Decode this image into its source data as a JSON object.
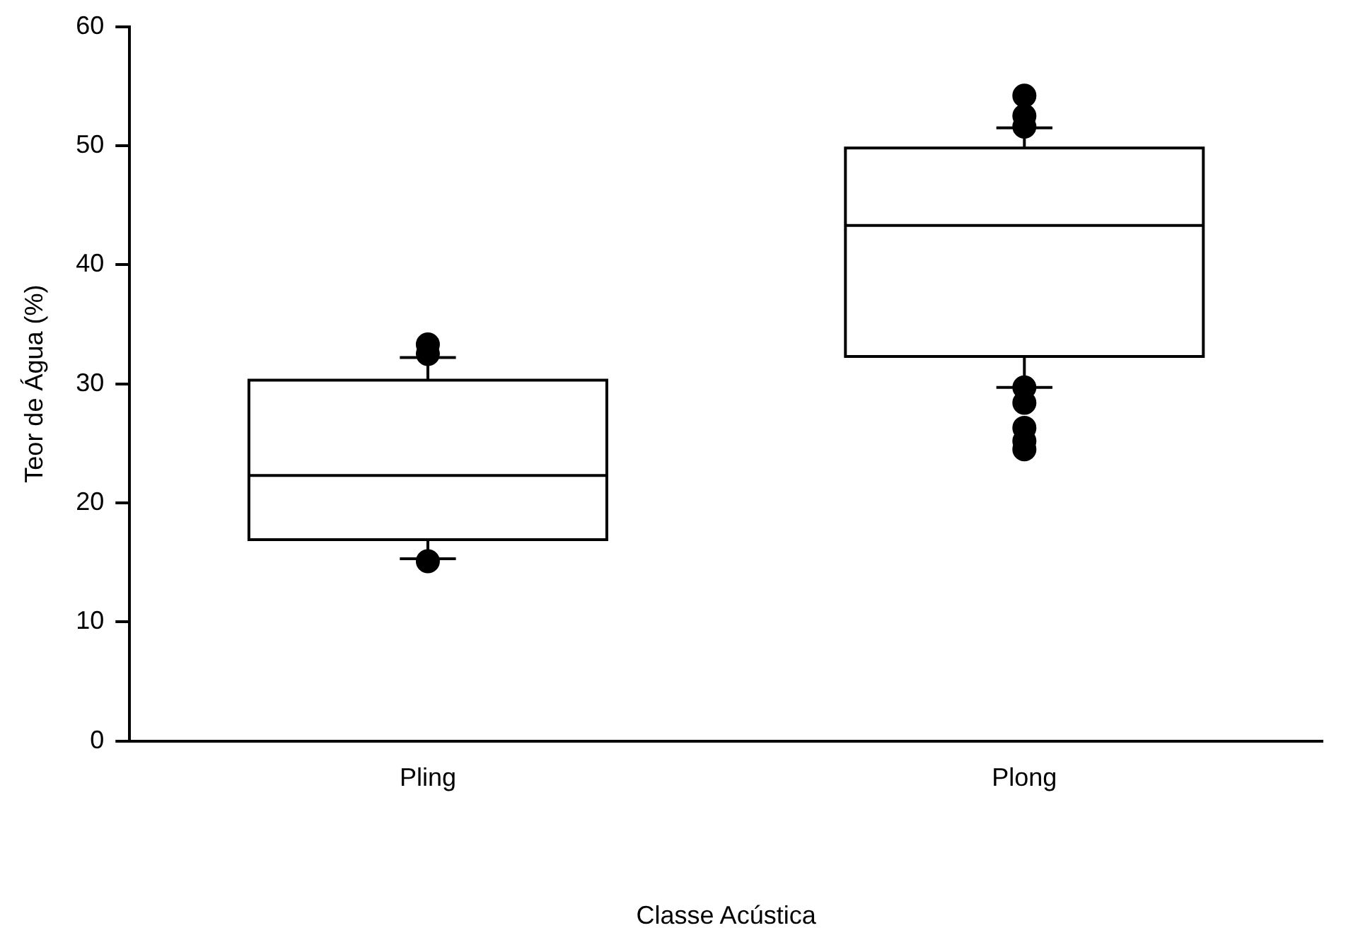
{
  "chart_data": {
    "type": "box",
    "xlabel": "Classe Acústica",
    "ylabel": "Teor de Água (%)",
    "categories": [
      "Pling",
      "Plong"
    ],
    "boxes": [
      {
        "low": 15.3,
        "q1": 16.9,
        "median": 22.3,
        "q3": 30.3,
        "high": 32.2,
        "outliers": [
          33.3,
          32.5,
          15.1
        ]
      },
      {
        "low": 29.7,
        "q1": 32.3,
        "median": 43.3,
        "q3": 49.8,
        "high": 51.5,
        "outliers": [
          54.2,
          52.5,
          51.6,
          29.7,
          28.4,
          26.3,
          25.2,
          24.5
        ]
      }
    ],
    "color": "#000000",
    "ylim": [
      0,
      60
    ],
    "yticks": [
      0,
      10,
      20,
      30,
      40,
      50,
      60
    ],
    "grid": false,
    "legend": false,
    "marker": "circle"
  }
}
